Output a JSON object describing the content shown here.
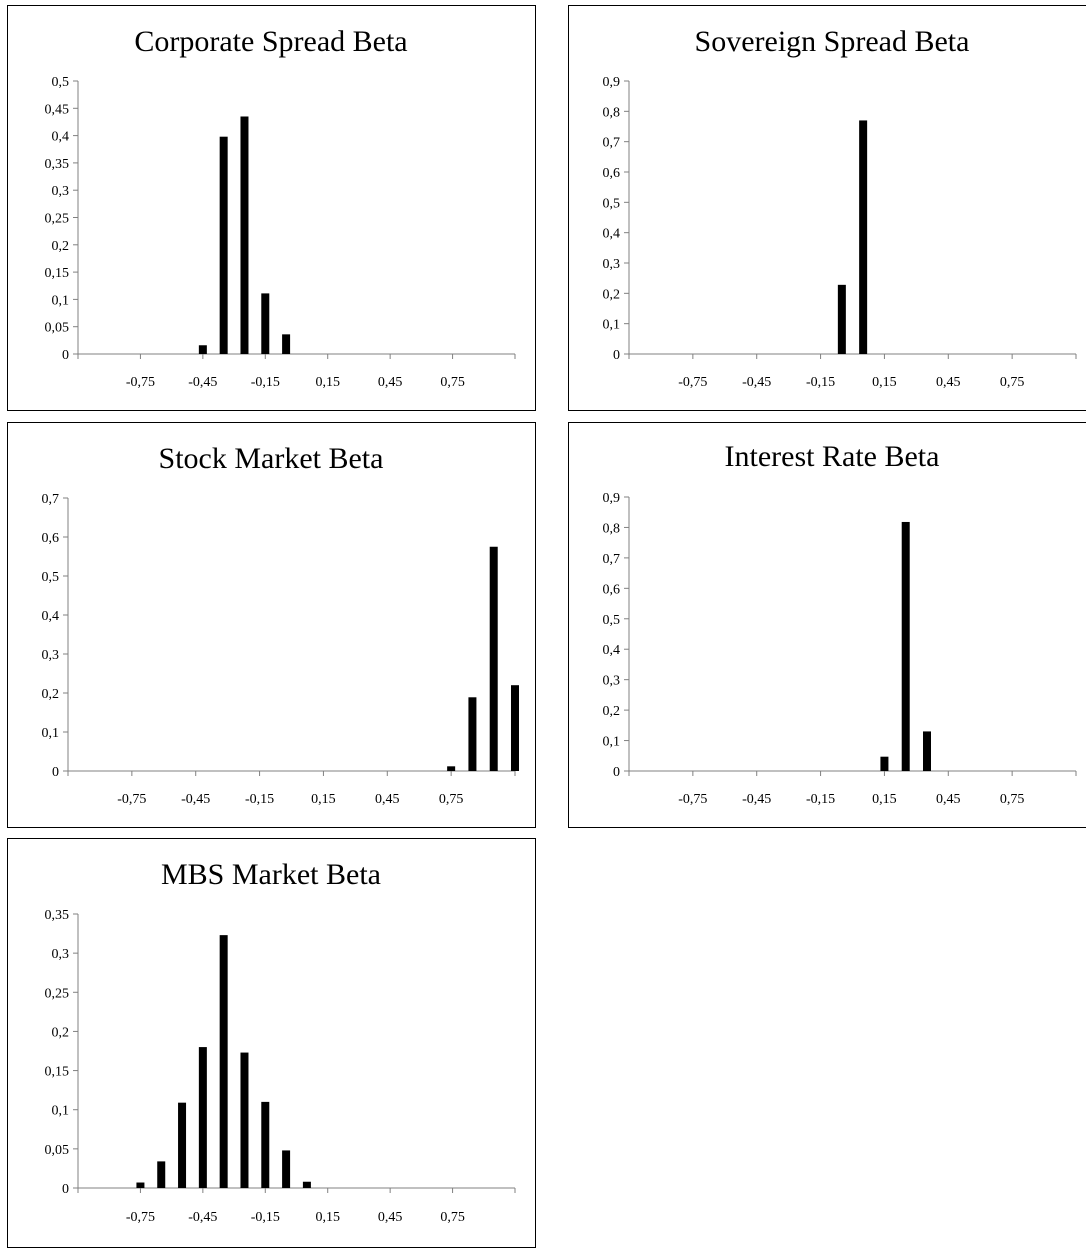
{
  "chart_data": [
    {
      "type": "bar",
      "title": "Corporate Spread Beta",
      "xlabel": "",
      "ylabel": "",
      "ylim": [
        0,
        0.5
      ],
      "yticks": [
        "0",
        "0,05",
        "0,1",
        "0,15",
        "0,2",
        "0,25",
        "0,3",
        "0,35",
        "0,4",
        "0,45",
        "0,5"
      ],
      "xlim": [
        -1.05,
        1.05
      ],
      "xticks": [
        "-0,75",
        "-0,45",
        "-0,15",
        "0,15",
        "0,45",
        "0,75"
      ],
      "x": [
        -0.45,
        -0.35,
        -0.25,
        -0.15,
        -0.05
      ],
      "values": [
        0.016,
        0.398,
        0.435,
        0.111,
        0.036
      ],
      "bar_color": "#000000"
    },
    {
      "type": "bar",
      "title": "Sovereign Spread Beta",
      "xlabel": "",
      "ylabel": "",
      "ylim": [
        0,
        0.9
      ],
      "yticks": [
        "0",
        "0,1",
        "0,2",
        "0,3",
        "0,4",
        "0,5",
        "0,6",
        "0,7",
        "0,8",
        "0,9"
      ],
      "xlim": [
        -1.05,
        1.05
      ],
      "xticks": [
        "-0,75",
        "-0,45",
        "-0,15",
        "0,15",
        "0,45",
        "0,75"
      ],
      "x": [
        -0.05,
        0.05
      ],
      "values": [
        0.228,
        0.77
      ],
      "bar_color": "#000000"
    },
    {
      "type": "bar",
      "title": "Stock Market Beta",
      "xlabel": "",
      "ylabel": "",
      "ylim": [
        0,
        0.7
      ],
      "yticks": [
        "0",
        "0,1",
        "0,2",
        "0,3",
        "0,4",
        "0,5",
        "0,6",
        "0,7"
      ],
      "xlim": [
        -1.05,
        1.05
      ],
      "xticks": [
        "-0,75",
        "-0,45",
        "-0,15",
        "0,15",
        "0,45",
        "0,75"
      ],
      "x": [
        0.75,
        0.85,
        0.95,
        1.05
      ],
      "values": [
        0.012,
        0.189,
        0.575,
        0.22
      ],
      "bar_color": "#000000"
    },
    {
      "type": "bar",
      "title": "Interest Rate Beta",
      "xlabel": "",
      "ylabel": "",
      "ylim": [
        0,
        0.9
      ],
      "yticks": [
        "0",
        "0,1",
        "0,2",
        "0,3",
        "0,4",
        "0,5",
        "0,6",
        "0,7",
        "0,8",
        "0,9"
      ],
      "xlim": [
        -1.05,
        1.05
      ],
      "xticks": [
        "-0,75",
        "-0,45",
        "-0,15",
        "0,15",
        "0,45",
        "0,75"
      ],
      "x": [
        0.15,
        0.25,
        0.35
      ],
      "values": [
        0.047,
        0.818,
        0.13
      ],
      "bar_color": "#000000"
    },
    {
      "type": "bar",
      "title": "MBS Market Beta",
      "xlabel": "",
      "ylabel": "",
      "ylim": [
        0,
        0.35
      ],
      "yticks": [
        "0",
        "0,05",
        "0,1",
        "0,15",
        "0,2",
        "0,25",
        "0,3",
        "0,35"
      ],
      "xlim": [
        -1.05,
        1.05
      ],
      "xticks": [
        "-0,75",
        "-0,45",
        "-0,15",
        "0,15",
        "0,45",
        "0,75"
      ],
      "x": [
        -0.75,
        -0.65,
        -0.55,
        -0.45,
        -0.35,
        -0.25,
        -0.15,
        -0.05,
        0.05
      ],
      "values": [
        0.007,
        0.034,
        0.109,
        0.18,
        0.323,
        0.173,
        0.11,
        0.048,
        0.008
      ],
      "bar_color": "#000000"
    }
  ]
}
